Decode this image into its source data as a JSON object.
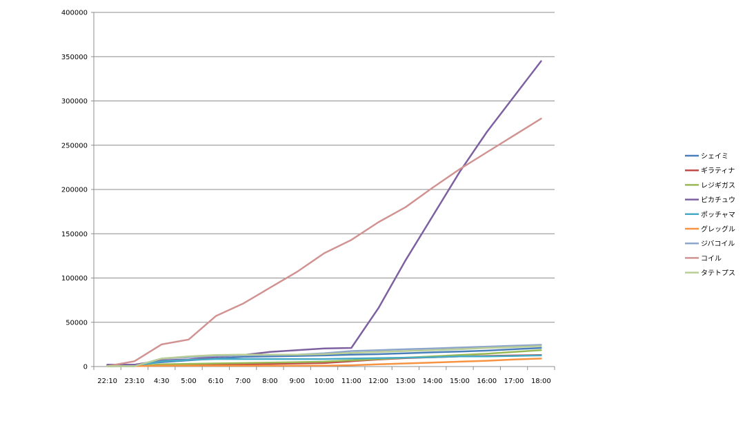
{
  "chart_data": {
    "type": "line",
    "title": "",
    "xlabel": "",
    "ylabel": "",
    "categories": [
      "22:10",
      "23:10",
      "4:30",
      "5:00",
      "6:10",
      "7:00",
      "8:00",
      "9:00",
      "10:00",
      "11:00",
      "12:00",
      "13:00",
      "14:00",
      "15:00",
      "16:00",
      "17:00",
      "18:00"
    ],
    "ylim": [
      0,
      400000
    ],
    "yticks": [
      0,
      50000,
      100000,
      150000,
      200000,
      250000,
      300000,
      350000,
      400000
    ],
    "grid": true,
    "legend_position": "right",
    "series": [
      {
        "name": "シェイミ",
        "color": "#4A7EBB",
        "values": [
          2000,
          2000,
          5000,
          7000,
          9000,
          11000,
          11500,
          12000,
          12500,
          13500,
          14000,
          15000,
          16000,
          17000,
          18000,
          19500,
          21000
        ]
      },
      {
        "name": "ギラティナ",
        "color": "#BE4B48",
        "values": [
          1000,
          1000,
          2000,
          2200,
          2500,
          2800,
          3000,
          3500,
          4000,
          6000,
          8000,
          9500,
          10500,
          11500,
          12000,
          12500,
          13000
        ]
      },
      {
        "name": "レジギガス",
        "color": "#98B954",
        "values": [
          500,
          500,
          2500,
          3000,
          3500,
          4000,
          4500,
          5000,
          5500,
          7000,
          8500,
          10000,
          11500,
          13000,
          14500,
          16500,
          18500
        ]
      },
      {
        "name": "ピカチュウ",
        "color": "#7D60A0",
        "values": [
          2000,
          2000,
          7000,
          8000,
          11000,
          13000,
          16500,
          18500,
          20500,
          21000,
          66000,
          120000,
          170000,
          220000,
          265000,
          305000,
          345000
        ]
      },
      {
        "name": "ポッチャマ",
        "color": "#46AAC5",
        "values": [
          500,
          500,
          6000,
          7500,
          8500,
          8500,
          8500,
          8500,
          8500,
          9000,
          9500,
          10000,
          10500,
          11500,
          11500,
          12000,
          12500
        ]
      },
      {
        "name": "グレッグル",
        "color": "#F69240",
        "values": [
          500,
          500,
          1000,
          1000,
          1000,
          1000,
          1000,
          1000,
          1000,
          1500,
          2500,
          3500,
          4500,
          5500,
          6500,
          8000,
          9000
        ]
      },
      {
        "name": "ジバコイル",
        "color": "#8EA5CB",
        "values": [
          500,
          500,
          9000,
          10500,
          12000,
          12500,
          13000,
          13500,
          15000,
          17500,
          18500,
          19500,
          20500,
          21500,
          22500,
          23500,
          24500
        ]
      },
      {
        "name": "コイル",
        "color": "#D19392",
        "values": [
          500,
          6000,
          25000,
          30500,
          57000,
          71000,
          89000,
          107000,
          128000,
          143000,
          163000,
          180000,
          202000,
          223000,
          242000,
          261000,
          280000
        ]
      },
      {
        "name": "タテトプス",
        "color": "#B9CD96",
        "values": [
          500,
          500,
          9000,
          11500,
          13000,
          13500,
          13500,
          13500,
          14000,
          15500,
          16500,
          17500,
          18500,
          19500,
          21000,
          22000,
          23000
        ]
      }
    ]
  }
}
